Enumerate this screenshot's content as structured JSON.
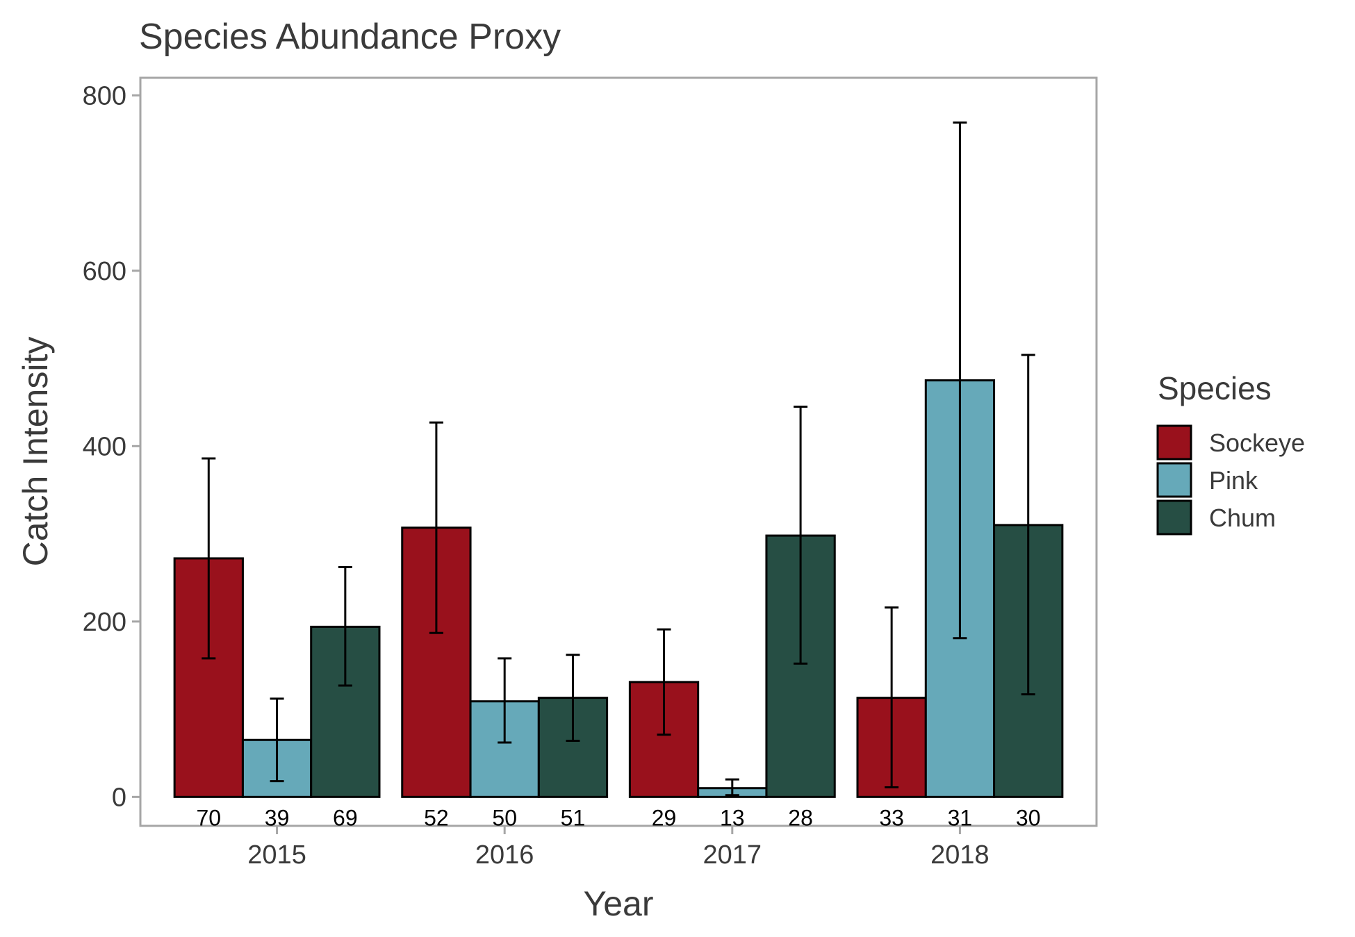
{
  "chart_data": {
    "type": "bar",
    "title": "Species Abundance Proxy",
    "xlabel": "Year",
    "ylabel": "Catch Intensity",
    "categories": [
      "2015",
      "2016",
      "2017",
      "2018"
    ],
    "ylim": [
      -33,
      820
    ],
    "yticks": [
      0,
      200,
      400,
      600,
      800
    ],
    "grid": false,
    "legend": {
      "title": "Species",
      "position": "right"
    },
    "series": [
      {
        "name": "Sockeye",
        "color": "#99111c",
        "values": [
          272,
          307,
          131,
          113
        ],
        "error_low": [
          158,
          187,
          71,
          11
        ],
        "error_high": [
          386,
          427,
          191,
          216
        ],
        "counts": [
          "70",
          "52",
          "29",
          "33"
        ]
      },
      {
        "name": "Pink",
        "color": "#66a9b9",
        "values": [
          65,
          109,
          10,
          475
        ],
        "error_low": [
          18,
          62,
          2,
          181
        ],
        "error_high": [
          112,
          158,
          20,
          769
        ],
        "counts": [
          "39",
          "50",
          "13",
          "31"
        ]
      },
      {
        "name": "Chum",
        "color": "#264e44",
        "values": [
          194,
          113,
          298,
          310
        ],
        "error_low": [
          127,
          64,
          152,
          117
        ],
        "error_high": [
          262,
          162,
          445,
          504
        ],
        "counts": [
          "69",
          "51",
          "28",
          "30"
        ]
      }
    ]
  }
}
